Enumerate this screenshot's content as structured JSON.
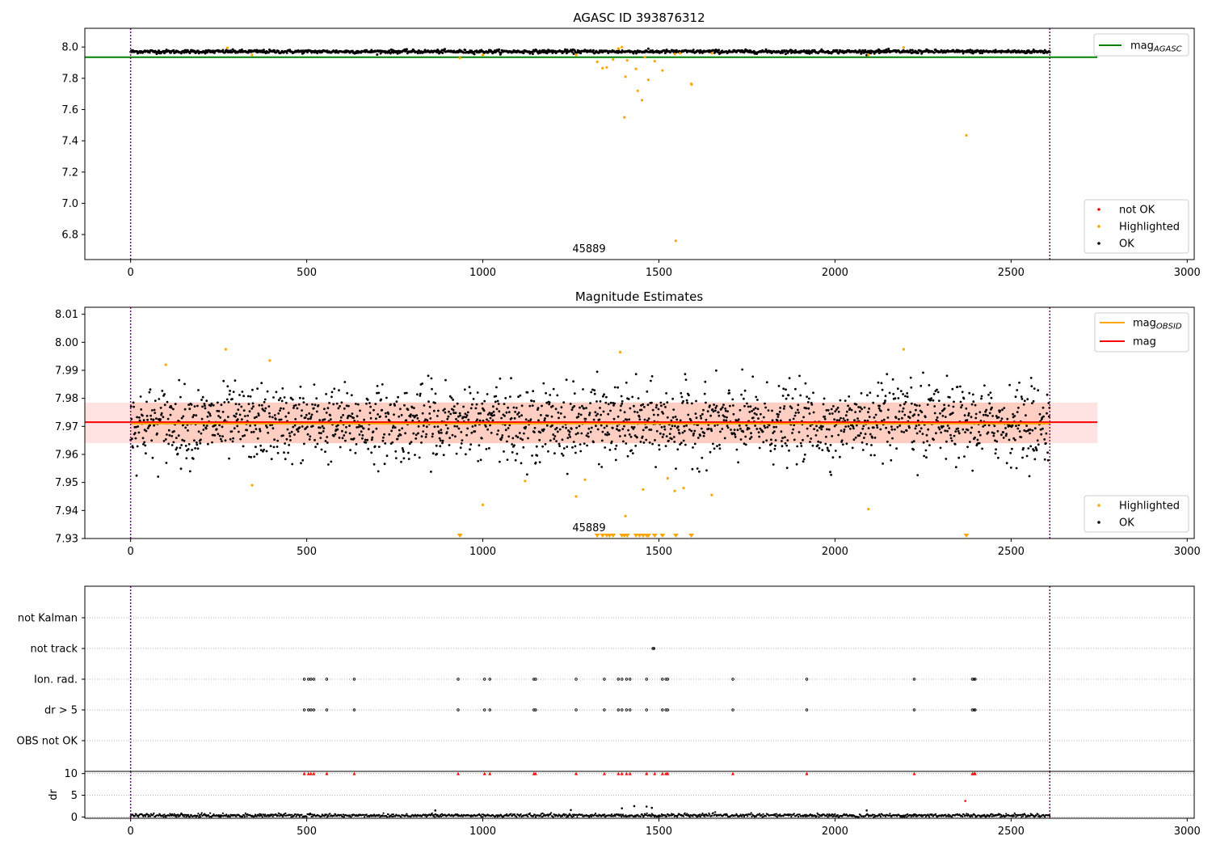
{
  "chart_data": [
    {
      "type": "scatter",
      "title": "AGASC ID 393876312",
      "xlabel": "",
      "ylabel": "",
      "xlim": [
        -130,
        3020
      ],
      "ylim": [
        6.64,
        8.12
      ],
      "xticks": [
        0,
        500,
        1000,
        1500,
        2000,
        2500,
        3000
      ],
      "yticks": [
        6.8,
        7.0,
        7.2,
        7.4,
        7.6,
        7.8,
        8.0
      ],
      "ytick_labels": [
        "6.8",
        "7.0",
        "7.2",
        "7.4",
        "7.6",
        "7.8",
        "8.0"
      ],
      "grid": false,
      "vlines": [
        0,
        2610
      ],
      "obsid_annotation": {
        "text": "45889",
        "x": 1300,
        "y": 6.68
      },
      "reference_line": {
        "name": "mag_AGASC",
        "y": 7.935,
        "x_range": [
          -130,
          2745
        ],
        "color": "#008000"
      },
      "ok_band": {
        "center": 7.971,
        "amplitude": 0.012,
        "x_range": [
          0,
          2610
        ]
      },
      "legend_lines": {
        "position": "top-right",
        "entries": [
          {
            "label": "mag",
            "sub": "AGASC",
            "color": "#008000"
          }
        ]
      },
      "legend_points": {
        "position": "lower-right",
        "entries": [
          {
            "label": "not OK",
            "color": "#ff0000"
          },
          {
            "label": "Highlighted",
            "color": "#ffa500"
          },
          {
            "label": "OK",
            "color": "#000000"
          }
        ]
      },
      "highlighted": [
        [
          275,
          7.995
        ],
        [
          345,
          7.95
        ],
        [
          935,
          7.93
        ],
        [
          1000,
          7.95
        ],
        [
          1265,
          7.95
        ],
        [
          1325,
          7.905
        ],
        [
          1340,
          7.865
        ],
        [
          1352,
          7.87
        ],
        [
          1370,
          7.92
        ],
        [
          1385,
          7.99
        ],
        [
          1395,
          8.0
        ],
        [
          1402,
          7.55
        ],
        [
          1405,
          7.81
        ],
        [
          1410,
          7.915
        ],
        [
          1440,
          7.72
        ],
        [
          1435,
          7.86
        ],
        [
          1452,
          7.66
        ],
        [
          1460,
          7.935
        ],
        [
          1470,
          7.79
        ],
        [
          1488,
          7.91
        ],
        [
          1510,
          7.85
        ],
        [
          1545,
          7.955
        ],
        [
          1548,
          6.76
        ],
        [
          1560,
          7.96
        ],
        [
          1592,
          7.765
        ],
        [
          1593,
          7.76
        ],
        [
          1650,
          7.96
        ],
        [
          2095,
          7.95
        ],
        [
          2195,
          7.997
        ],
        [
          2373,
          7.435
        ]
      ]
    },
    {
      "type": "scatter",
      "title": "Magnitude Estimates",
      "xlabel": "",
      "ylabel": "",
      "xlim": [
        -130,
        3020
      ],
      "ylim": [
        7.93,
        8.0125
      ],
      "xticks": [
        0,
        500,
        1000,
        1500,
        2000,
        2500,
        3000
      ],
      "yticks": [
        7.93,
        7.94,
        7.95,
        7.96,
        7.97,
        7.98,
        7.99,
        8.0,
        8.01
      ],
      "ytick_labels": [
        "7.93",
        "7.94",
        "7.95",
        "7.96",
        "7.97",
        "7.98",
        "7.99",
        "8.00",
        "8.01"
      ],
      "grid": false,
      "vlines": [
        0,
        2610
      ],
      "obsid_annotation": {
        "text": "45889",
        "x": 1300,
        "y": 7.932
      },
      "mag_line": {
        "name": "mag",
        "y": 7.9715,
        "x_range": [
          -130,
          2745
        ],
        "color": "#ff0000"
      },
      "mag_obsid_line": {
        "name": "mag_OBSID",
        "y": 7.971,
        "x_range": [
          0,
          2610
        ],
        "color": "#ffa500"
      },
      "mag_band": {
        "low": 7.964,
        "high": 7.9785,
        "x_range": [
          -130,
          2745
        ]
      },
      "ok_band": {
        "center": 7.971,
        "amplitude": 0.012,
        "x_range": [
          0,
          2610
        ]
      },
      "legend_lines": {
        "position": "top-right",
        "entries": [
          {
            "label": "mag",
            "sub": "OBSID",
            "color": "#ffa500"
          },
          {
            "label": "mag",
            "sub": "",
            "color": "#ff0000"
          }
        ]
      },
      "legend_points": {
        "position": "lower-right",
        "entries": [
          {
            "label": "Highlighted",
            "color": "#ffa500"
          },
          {
            "label": "OK",
            "color": "#000000"
          }
        ]
      },
      "highlighted": [
        [
          100,
          7.992
        ],
        [
          270,
          7.9975
        ],
        [
          345,
          7.949
        ],
        [
          395,
          7.9935
        ],
        [
          1000,
          7.942
        ],
        [
          1120,
          7.9505
        ],
        [
          1265,
          7.945
        ],
        [
          1290,
          7.951
        ],
        [
          1390,
          7.9965
        ],
        [
          1405,
          7.938
        ],
        [
          1455,
          7.9475
        ],
        [
          1525,
          7.9515
        ],
        [
          1545,
          7.947
        ],
        [
          1570,
          7.948
        ],
        [
          1650,
          7.9455
        ],
        [
          2095,
          7.9405
        ],
        [
          2195,
          7.9975
        ]
      ],
      "below_range_markers": [
        935,
        1325,
        1340,
        1352,
        1360,
        1370,
        1395,
        1402,
        1410,
        1435,
        1445,
        1455,
        1465,
        1470,
        1488,
        1510,
        1548,
        1592,
        2373
      ]
    },
    {
      "type": "scatter",
      "title": "",
      "xlabel": "",
      "ylabel": "",
      "xlim": [
        -130,
        3020
      ],
      "categories": [
        "not Kalman",
        "not track",
        "Ion. rad.",
        "dr > 5",
        "OBS not OK"
      ],
      "grid": "horizontal-dotted",
      "vlines": [
        0,
        2610
      ],
      "flags": {
        "not track": [
          1483,
          1486
        ],
        "Ion. rad.": [
          493,
          505,
          512,
          520,
          557,
          635,
          930,
          1005,
          1020,
          1145,
          1150,
          1265,
          1345,
          1385,
          1395,
          1408,
          1418,
          1465,
          1510,
          1520,
          1525,
          1710,
          1920,
          2225,
          2390,
          2395,
          2398
        ],
        "dr > 5": [
          493,
          505,
          512,
          520,
          557,
          635,
          930,
          1005,
          1020,
          1145,
          1150,
          1265,
          1345,
          1385,
          1395,
          1408,
          1418,
          1465,
          1510,
          1520,
          1525,
          1710,
          1920,
          2225,
          2390,
          2395,
          2398
        ]
      }
    },
    {
      "type": "scatter",
      "title": "",
      "xlabel": "",
      "ylabel": "dr",
      "xlim": [
        -130,
        3020
      ],
      "ylim": [
        -0.3,
        10.5
      ],
      "xticks": [
        0,
        500,
        1000,
        1500,
        2000,
        2500,
        3000
      ],
      "yticks": [
        0,
        5,
        10
      ],
      "ytick_labels": [
        "0",
        "5",
        "10"
      ],
      "grid": "horizontal-dotted",
      "vlines": [
        0,
        2610
      ],
      "dr_hline": 10,
      "capped_at_10": [
        493,
        505,
        512,
        520,
        557,
        635,
        930,
        1005,
        1020,
        1145,
        1150,
        1265,
        1345,
        1385,
        1395,
        1408,
        1418,
        1465,
        1488,
        1510,
        1520,
        1525,
        1710,
        1920,
        2225,
        2390,
        2395,
        2398
      ],
      "outliers": [
        [
          2370,
          3.7
        ],
        [
          1430,
          2.5
        ],
        [
          1465,
          2.4
        ],
        [
          1395,
          2.0
        ],
        [
          1480,
          2.1
        ],
        [
          1250,
          1.6
        ],
        [
          865,
          1.5
        ],
        [
          2090,
          1.5
        ]
      ]
    }
  ]
}
